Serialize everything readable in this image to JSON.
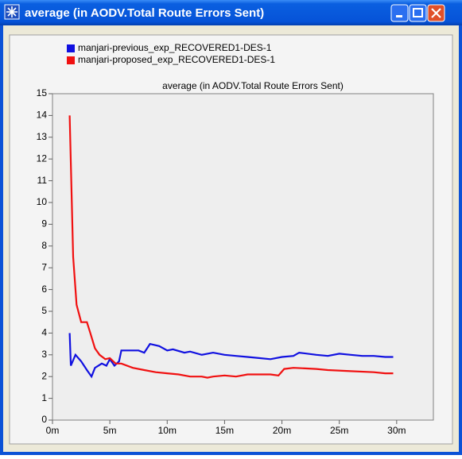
{
  "window": {
    "title": "average (in AODV.Total Route Errors Sent)"
  },
  "chart_data": {
    "type": "line",
    "title": "average (in AODV.Total Route Errors Sent)",
    "series": [
      {
        "name": "manjari-previous_exp_RECOVERED1-DES-1",
        "color": "#1010e0",
        "x": [
          1.5,
          1.6,
          2,
          2.5,
          3,
          3.4,
          3.7,
          4.3,
          4.7,
          5,
          5.4,
          5.8,
          6,
          7.5,
          8,
          8.5,
          9.3,
          10,
          10.5,
          11.5,
          12,
          13,
          14,
          15,
          16,
          17,
          18,
          19,
          20,
          21,
          21.5,
          23,
          24,
          25,
          26,
          27,
          28,
          29,
          29.7
        ],
        "values": [
          4,
          2.5,
          3.0,
          2.7,
          2.3,
          2.0,
          2.4,
          2.6,
          2.5,
          2.8,
          2.5,
          2.7,
          3.2,
          3.2,
          3.1,
          3.5,
          3.4,
          3.2,
          3.25,
          3.1,
          3.15,
          3.0,
          3.1,
          3.0,
          2.95,
          2.9,
          2.85,
          2.8,
          2.9,
          2.95,
          3.1,
          3.0,
          2.95,
          3.05,
          3.0,
          2.95,
          2.95,
          2.9,
          2.9
        ]
      },
      {
        "name": "manjari-proposed_exp_RECOVERED1-DES-1",
        "color": "#f01010",
        "x": [
          1.5,
          1.8,
          2.1,
          2.5,
          3,
          3.3,
          3.7,
          4.1,
          4.6,
          5,
          5.5,
          6,
          7,
          8,
          9,
          10,
          11,
          12,
          13,
          13.5,
          14,
          15,
          16,
          17,
          19,
          19.7,
          20.2,
          21,
          23,
          24,
          26,
          28,
          29,
          29.7
        ],
        "values": [
          14,
          7.5,
          5.3,
          4.5,
          4.5,
          4.0,
          3.3,
          3.0,
          2.8,
          2.85,
          2.6,
          2.6,
          2.4,
          2.3,
          2.2,
          2.15,
          2.1,
          2.0,
          2.0,
          1.95,
          2.0,
          2.05,
          2.0,
          2.1,
          2.1,
          2.05,
          2.35,
          2.4,
          2.35,
          2.3,
          2.25,
          2.2,
          2.15,
          2.15
        ]
      }
    ],
    "xlim": [
      0,
      33.2
    ],
    "ylim": [
      0,
      15
    ],
    "xticks": [
      {
        "value": 0,
        "label": "0m"
      },
      {
        "value": 5,
        "label": "5m"
      },
      {
        "value": 10,
        "label": "10m"
      },
      {
        "value": 15,
        "label": "15m"
      },
      {
        "value": 20,
        "label": "20m"
      },
      {
        "value": 25,
        "label": "25m"
      },
      {
        "value": 30,
        "label": "30m"
      }
    ],
    "yticks": [
      0,
      1,
      2,
      3,
      4,
      5,
      6,
      7,
      8,
      9,
      10,
      11,
      12,
      13,
      14,
      15
    ]
  }
}
